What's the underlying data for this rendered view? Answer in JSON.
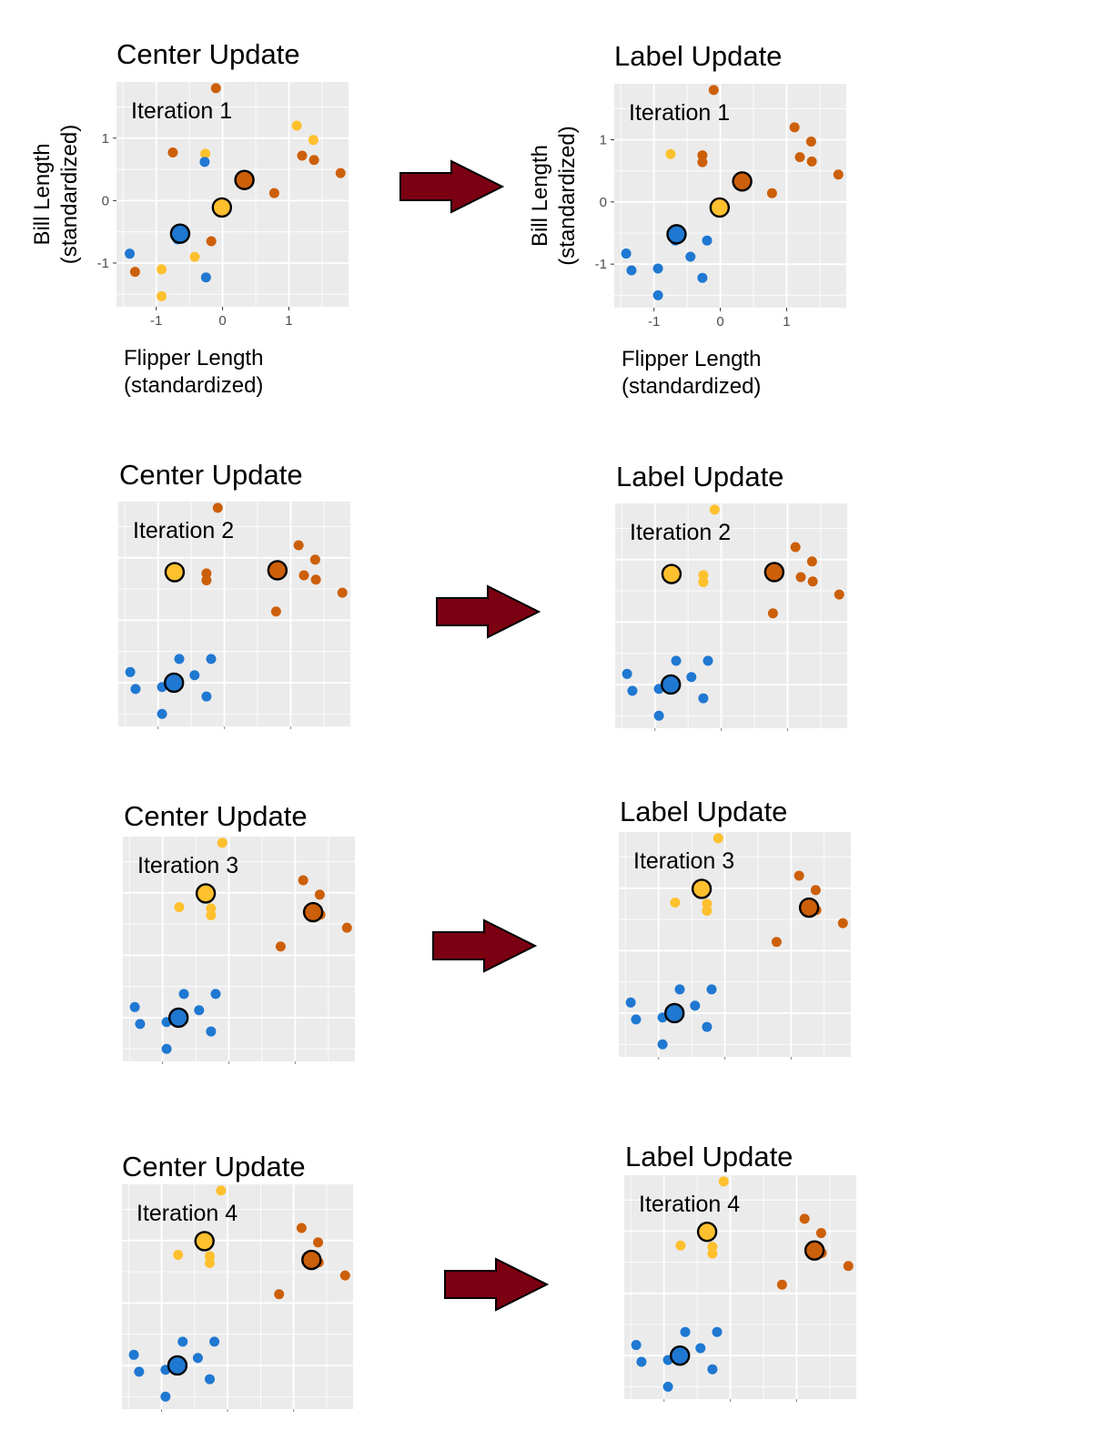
{
  "colors": {
    "blue": "#1f78d1",
    "yellow": "#ffc02e",
    "orange": "#cc5f0a",
    "panel_bg": "#ebebeb",
    "grid": "#ffffff",
    "arrow_fill": "#7b0012",
    "center_stroke": "#000000"
  },
  "arrow_icon": "right-arrow-icon",
  "chart_data": [
    {
      "type": "scatter",
      "title": "Center Update",
      "annotation": "Iteration 1",
      "xlabel": [
        "Flipper Length",
        "(standardized)"
      ],
      "ylabel": [
        "Bill Length",
        "(standardized)"
      ],
      "xlim": [
        -1.6,
        1.9
      ],
      "ylim": [
        -1.7,
        1.9
      ],
      "xticks": [
        -1,
        0,
        1
      ],
      "yticks": [
        -1,
        0,
        1
      ],
      "xtick_labels": [
        "-1",
        "0",
        "1"
      ],
      "ytick_labels": [
        "-1",
        "0",
        "1"
      ],
      "points": [
        {
          "x": -0.1,
          "y": 1.8,
          "c": "orange"
        },
        {
          "x": -0.75,
          "y": 0.77,
          "c": "orange"
        },
        {
          "x": 0.78,
          "y": 0.12,
          "c": "orange"
        },
        {
          "x": 1.2,
          "y": 0.72,
          "c": "orange"
        },
        {
          "x": 1.38,
          "y": 0.65,
          "c": "orange"
        },
        {
          "x": 1.78,
          "y": 0.44,
          "c": "orange"
        },
        {
          "x": -0.17,
          "y": -0.65,
          "c": "orange"
        },
        {
          "x": -1.32,
          "y": -1.14,
          "c": "orange"
        },
        {
          "x": 1.12,
          "y": 1.2,
          "c": "yellow"
        },
        {
          "x": 1.37,
          "y": 0.97,
          "c": "yellow"
        },
        {
          "x": -0.26,
          "y": 0.75,
          "c": "yellow"
        },
        {
          "x": -0.92,
          "y": -1.1,
          "c": "yellow"
        },
        {
          "x": -0.42,
          "y": -0.9,
          "c": "yellow"
        },
        {
          "x": -0.92,
          "y": -1.53,
          "c": "yellow"
        },
        {
          "x": -0.27,
          "y": 0.62,
          "c": "blue"
        },
        {
          "x": -1.4,
          "y": -0.85,
          "c": "blue"
        },
        {
          "x": -0.25,
          "y": -1.23,
          "c": "blue"
        },
        {
          "x": -0.68,
          "y": -0.62,
          "c": "blue"
        }
      ],
      "centers": [
        {
          "x": 0.33,
          "y": 0.33,
          "c": "orange"
        },
        {
          "x": -0.01,
          "y": -0.11,
          "c": "yellow"
        },
        {
          "x": -0.64,
          "y": -0.53,
          "c": "blue"
        }
      ]
    },
    {
      "type": "scatter",
      "title": "Label Update",
      "annotation": "Iteration 1",
      "xlabel": [
        "Flipper Length",
        "(standardized)"
      ],
      "ylabel": [
        "Bill Length",
        "(standardized)"
      ],
      "xlim": [
        -1.6,
        1.9
      ],
      "ylim": [
        -1.7,
        1.9
      ],
      "xticks": [
        -1,
        0,
        1
      ],
      "yticks": [
        -1,
        0,
        1
      ],
      "xtick_labels": [
        "-1",
        "0",
        "1"
      ],
      "ytick_labels": [
        "-1",
        "0",
        "1"
      ],
      "points": [
        {
          "x": -0.1,
          "y": 1.8,
          "c": "orange"
        },
        {
          "x": 1.12,
          "y": 1.2,
          "c": "orange"
        },
        {
          "x": 1.37,
          "y": 0.97,
          "c": "orange"
        },
        {
          "x": -0.27,
          "y": 0.75,
          "c": "orange"
        },
        {
          "x": -0.27,
          "y": 0.64,
          "c": "orange"
        },
        {
          "x": 1.2,
          "y": 0.72,
          "c": "orange"
        },
        {
          "x": 1.38,
          "y": 0.65,
          "c": "orange"
        },
        {
          "x": 1.78,
          "y": 0.44,
          "c": "orange"
        },
        {
          "x": 0.78,
          "y": 0.14,
          "c": "orange"
        },
        {
          "x": -0.75,
          "y": 0.77,
          "c": "yellow"
        },
        {
          "x": -0.68,
          "y": -0.62,
          "c": "blue"
        },
        {
          "x": -0.2,
          "y": -0.62,
          "c": "blue"
        },
        {
          "x": -1.42,
          "y": -0.83,
          "c": "blue"
        },
        {
          "x": -0.45,
          "y": -0.88,
          "c": "blue"
        },
        {
          "x": -1.34,
          "y": -1.1,
          "c": "blue"
        },
        {
          "x": -0.94,
          "y": -1.07,
          "c": "blue"
        },
        {
          "x": -0.27,
          "y": -1.22,
          "c": "blue"
        },
        {
          "x": -0.94,
          "y": -1.5,
          "c": "blue"
        }
      ],
      "centers": [
        {
          "x": 0.33,
          "y": 0.33,
          "c": "orange"
        },
        {
          "x": -0.01,
          "y": -0.09,
          "c": "yellow"
        },
        {
          "x": -0.66,
          "y": -0.52,
          "c": "blue"
        }
      ]
    },
    {
      "type": "scatter",
      "title": "Center Update",
      "annotation": "Iteration 2",
      "xlim": [
        -1.6,
        1.9
      ],
      "ylim": [
        -1.7,
        1.9
      ],
      "xticks": [
        -1,
        0,
        1
      ],
      "yticks": [
        -1,
        0,
        1
      ],
      "points": [
        {
          "x": -0.1,
          "y": 1.8,
          "c": "orange"
        },
        {
          "x": 1.12,
          "y": 1.2,
          "c": "orange"
        },
        {
          "x": 1.37,
          "y": 0.97,
          "c": "orange"
        },
        {
          "x": -0.27,
          "y": 0.75,
          "c": "orange"
        },
        {
          "x": -0.27,
          "y": 0.64,
          "c": "orange"
        },
        {
          "x": 1.2,
          "y": 0.72,
          "c": "orange"
        },
        {
          "x": 1.38,
          "y": 0.65,
          "c": "orange"
        },
        {
          "x": 1.78,
          "y": 0.44,
          "c": "orange"
        },
        {
          "x": 0.78,
          "y": 0.14,
          "c": "orange"
        },
        {
          "x": -0.68,
          "y": -0.62,
          "c": "blue"
        },
        {
          "x": -0.2,
          "y": -0.62,
          "c": "blue"
        },
        {
          "x": -1.42,
          "y": -0.83,
          "c": "blue"
        },
        {
          "x": -0.45,
          "y": -0.88,
          "c": "blue"
        },
        {
          "x": -1.34,
          "y": -1.1,
          "c": "blue"
        },
        {
          "x": -0.94,
          "y": -1.07,
          "c": "blue"
        },
        {
          "x": -0.27,
          "y": -1.22,
          "c": "blue"
        },
        {
          "x": -0.94,
          "y": -1.5,
          "c": "blue"
        }
      ],
      "centers": [
        {
          "x": 0.8,
          "y": 0.8,
          "c": "orange"
        },
        {
          "x": -0.75,
          "y": 0.77,
          "c": "yellow"
        },
        {
          "x": -0.76,
          "y": -1.0,
          "c": "blue"
        }
      ]
    },
    {
      "type": "scatter",
      "title": "Label Update",
      "annotation": "Iteration 2",
      "xlim": [
        -1.6,
        1.9
      ],
      "ylim": [
        -1.7,
        1.9
      ],
      "xticks": [
        -1,
        0,
        1
      ],
      "yticks": [
        -1,
        0,
        1
      ],
      "points": [
        {
          "x": -0.1,
          "y": 1.8,
          "c": "yellow"
        },
        {
          "x": -0.27,
          "y": 0.75,
          "c": "yellow"
        },
        {
          "x": -0.27,
          "y": 0.64,
          "c": "yellow"
        },
        {
          "x": 1.12,
          "y": 1.2,
          "c": "orange"
        },
        {
          "x": 1.37,
          "y": 0.97,
          "c": "orange"
        },
        {
          "x": 1.2,
          "y": 0.72,
          "c": "orange"
        },
        {
          "x": 1.38,
          "y": 0.65,
          "c": "orange"
        },
        {
          "x": 1.78,
          "y": 0.44,
          "c": "orange"
        },
        {
          "x": 0.78,
          "y": 0.14,
          "c": "orange"
        },
        {
          "x": -0.68,
          "y": -0.62,
          "c": "blue"
        },
        {
          "x": -0.2,
          "y": -0.62,
          "c": "blue"
        },
        {
          "x": -1.42,
          "y": -0.83,
          "c": "blue"
        },
        {
          "x": -0.45,
          "y": -0.88,
          "c": "blue"
        },
        {
          "x": -1.34,
          "y": -1.1,
          "c": "blue"
        },
        {
          "x": -0.94,
          "y": -1.07,
          "c": "blue"
        },
        {
          "x": -0.27,
          "y": -1.22,
          "c": "blue"
        },
        {
          "x": -0.94,
          "y": -1.5,
          "c": "blue"
        }
      ],
      "centers": [
        {
          "x": 0.8,
          "y": 0.8,
          "c": "orange"
        },
        {
          "x": -0.75,
          "y": 0.77,
          "c": "yellow"
        },
        {
          "x": -0.76,
          "y": -1.0,
          "c": "blue"
        }
      ]
    },
    {
      "type": "scatter",
      "title": "Center Update",
      "annotation": "Iteration 3",
      "xlim": [
        -1.6,
        1.9
      ],
      "ylim": [
        -1.7,
        1.9
      ],
      "xticks": [
        -1,
        0,
        1
      ],
      "yticks": [
        -1,
        0,
        1
      ],
      "points": [
        {
          "x": -0.1,
          "y": 1.8,
          "c": "yellow"
        },
        {
          "x": -0.75,
          "y": 0.77,
          "c": "yellow"
        },
        {
          "x": -0.27,
          "y": 0.75,
          "c": "yellow"
        },
        {
          "x": -0.27,
          "y": 0.64,
          "c": "yellow"
        },
        {
          "x": 1.12,
          "y": 1.2,
          "c": "orange"
        },
        {
          "x": 1.37,
          "y": 0.97,
          "c": "orange"
        },
        {
          "x": 1.2,
          "y": 0.72,
          "c": "orange"
        },
        {
          "x": 1.38,
          "y": 0.65,
          "c": "orange"
        },
        {
          "x": 1.78,
          "y": 0.44,
          "c": "orange"
        },
        {
          "x": 0.78,
          "y": 0.14,
          "c": "orange"
        },
        {
          "x": -0.68,
          "y": -0.62,
          "c": "blue"
        },
        {
          "x": -0.2,
          "y": -0.62,
          "c": "blue"
        },
        {
          "x": -1.42,
          "y": -0.83,
          "c": "blue"
        },
        {
          "x": -0.45,
          "y": -0.88,
          "c": "blue"
        },
        {
          "x": -1.34,
          "y": -1.1,
          "c": "blue"
        },
        {
          "x": -0.94,
          "y": -1.07,
          "c": "blue"
        },
        {
          "x": -0.27,
          "y": -1.22,
          "c": "blue"
        },
        {
          "x": -0.94,
          "y": -1.5,
          "c": "blue"
        }
      ],
      "centers": [
        {
          "x": 1.27,
          "y": 0.69,
          "c": "orange"
        },
        {
          "x": -0.35,
          "y": 0.99,
          "c": "yellow"
        },
        {
          "x": -0.76,
          "y": -1.0,
          "c": "blue"
        }
      ]
    },
    {
      "type": "scatter",
      "title": "Label Update",
      "annotation": "Iteration 3",
      "xlim": [
        -1.6,
        1.9
      ],
      "ylim": [
        -1.7,
        1.9
      ],
      "xticks": [
        -1,
        0,
        1
      ],
      "yticks": [
        -1,
        0,
        1
      ],
      "points": [
        {
          "x": -0.1,
          "y": 1.8,
          "c": "yellow"
        },
        {
          "x": -0.75,
          "y": 0.77,
          "c": "yellow"
        },
        {
          "x": -0.27,
          "y": 0.75,
          "c": "yellow"
        },
        {
          "x": -0.27,
          "y": 0.64,
          "c": "yellow"
        },
        {
          "x": 1.12,
          "y": 1.2,
          "c": "orange"
        },
        {
          "x": 1.37,
          "y": 0.97,
          "c": "orange"
        },
        {
          "x": 1.2,
          "y": 0.72,
          "c": "orange"
        },
        {
          "x": 1.38,
          "y": 0.65,
          "c": "orange"
        },
        {
          "x": 1.78,
          "y": 0.44,
          "c": "orange"
        },
        {
          "x": 0.78,
          "y": 0.14,
          "c": "orange"
        },
        {
          "x": -0.68,
          "y": -0.62,
          "c": "blue"
        },
        {
          "x": -0.2,
          "y": -0.62,
          "c": "blue"
        },
        {
          "x": -1.42,
          "y": -0.83,
          "c": "blue"
        },
        {
          "x": -0.45,
          "y": -0.88,
          "c": "blue"
        },
        {
          "x": -1.34,
          "y": -1.1,
          "c": "blue"
        },
        {
          "x": -0.94,
          "y": -1.07,
          "c": "blue"
        },
        {
          "x": -0.27,
          "y": -1.22,
          "c": "blue"
        },
        {
          "x": -0.94,
          "y": -1.5,
          "c": "blue"
        }
      ],
      "centers": [
        {
          "x": 1.27,
          "y": 0.69,
          "c": "orange"
        },
        {
          "x": -0.35,
          "y": 0.99,
          "c": "yellow"
        },
        {
          "x": -0.76,
          "y": -1.0,
          "c": "blue"
        }
      ]
    },
    {
      "type": "scatter",
      "title": "Center Update",
      "annotation": "Iteration 4",
      "xlim": [
        -1.6,
        1.9
      ],
      "ylim": [
        -1.7,
        1.9
      ],
      "xticks": [
        -1,
        0,
        1
      ],
      "yticks": [
        -1,
        0,
        1
      ],
      "points": [
        {
          "x": -0.1,
          "y": 1.8,
          "c": "yellow"
        },
        {
          "x": -0.75,
          "y": 0.77,
          "c": "yellow"
        },
        {
          "x": -0.27,
          "y": 0.75,
          "c": "yellow"
        },
        {
          "x": -0.27,
          "y": 0.64,
          "c": "yellow"
        },
        {
          "x": 1.12,
          "y": 1.2,
          "c": "orange"
        },
        {
          "x": 1.37,
          "y": 0.97,
          "c": "orange"
        },
        {
          "x": 1.2,
          "y": 0.72,
          "c": "orange"
        },
        {
          "x": 1.38,
          "y": 0.65,
          "c": "orange"
        },
        {
          "x": 1.78,
          "y": 0.44,
          "c": "orange"
        },
        {
          "x": 0.78,
          "y": 0.14,
          "c": "orange"
        },
        {
          "x": -0.68,
          "y": -0.62,
          "c": "blue"
        },
        {
          "x": -0.2,
          "y": -0.62,
          "c": "blue"
        },
        {
          "x": -1.42,
          "y": -0.83,
          "c": "blue"
        },
        {
          "x": -0.45,
          "y": -0.88,
          "c": "blue"
        },
        {
          "x": -1.34,
          "y": -1.1,
          "c": "blue"
        },
        {
          "x": -0.94,
          "y": -1.07,
          "c": "blue"
        },
        {
          "x": -0.27,
          "y": -1.22,
          "c": "blue"
        },
        {
          "x": -0.94,
          "y": -1.5,
          "c": "blue"
        }
      ],
      "centers": [
        {
          "x": 1.27,
          "y": 0.69,
          "c": "orange"
        },
        {
          "x": -0.35,
          "y": 0.99,
          "c": "yellow"
        },
        {
          "x": -0.76,
          "y": -1.0,
          "c": "blue"
        }
      ]
    },
    {
      "type": "scatter",
      "title": "Label Update",
      "annotation": "Iteration 4",
      "xlim": [
        -1.6,
        1.9
      ],
      "ylim": [
        -1.7,
        1.9
      ],
      "xticks": [
        -1,
        0,
        1
      ],
      "yticks": [
        -1,
        0,
        1
      ],
      "points": [
        {
          "x": -0.1,
          "y": 1.8,
          "c": "yellow"
        },
        {
          "x": -0.75,
          "y": 0.77,
          "c": "yellow"
        },
        {
          "x": -0.27,
          "y": 0.75,
          "c": "yellow"
        },
        {
          "x": -0.27,
          "y": 0.64,
          "c": "yellow"
        },
        {
          "x": 1.12,
          "y": 1.2,
          "c": "orange"
        },
        {
          "x": 1.37,
          "y": 0.97,
          "c": "orange"
        },
        {
          "x": 1.2,
          "y": 0.72,
          "c": "orange"
        },
        {
          "x": 1.38,
          "y": 0.65,
          "c": "orange"
        },
        {
          "x": 1.78,
          "y": 0.44,
          "c": "orange"
        },
        {
          "x": 0.78,
          "y": 0.14,
          "c": "orange"
        },
        {
          "x": -0.68,
          "y": -0.62,
          "c": "blue"
        },
        {
          "x": -0.2,
          "y": -0.62,
          "c": "blue"
        },
        {
          "x": -1.42,
          "y": -0.83,
          "c": "blue"
        },
        {
          "x": -0.45,
          "y": -0.88,
          "c": "blue"
        },
        {
          "x": -1.34,
          "y": -1.1,
          "c": "blue"
        },
        {
          "x": -0.94,
          "y": -1.07,
          "c": "blue"
        },
        {
          "x": -0.27,
          "y": -1.22,
          "c": "blue"
        },
        {
          "x": -0.94,
          "y": -1.5,
          "c": "blue"
        }
      ],
      "centers": [
        {
          "x": 1.27,
          "y": 0.69,
          "c": "orange"
        },
        {
          "x": -0.35,
          "y": 0.99,
          "c": "yellow"
        },
        {
          "x": -0.76,
          "y": -1.0,
          "c": "blue"
        }
      ]
    }
  ]
}
